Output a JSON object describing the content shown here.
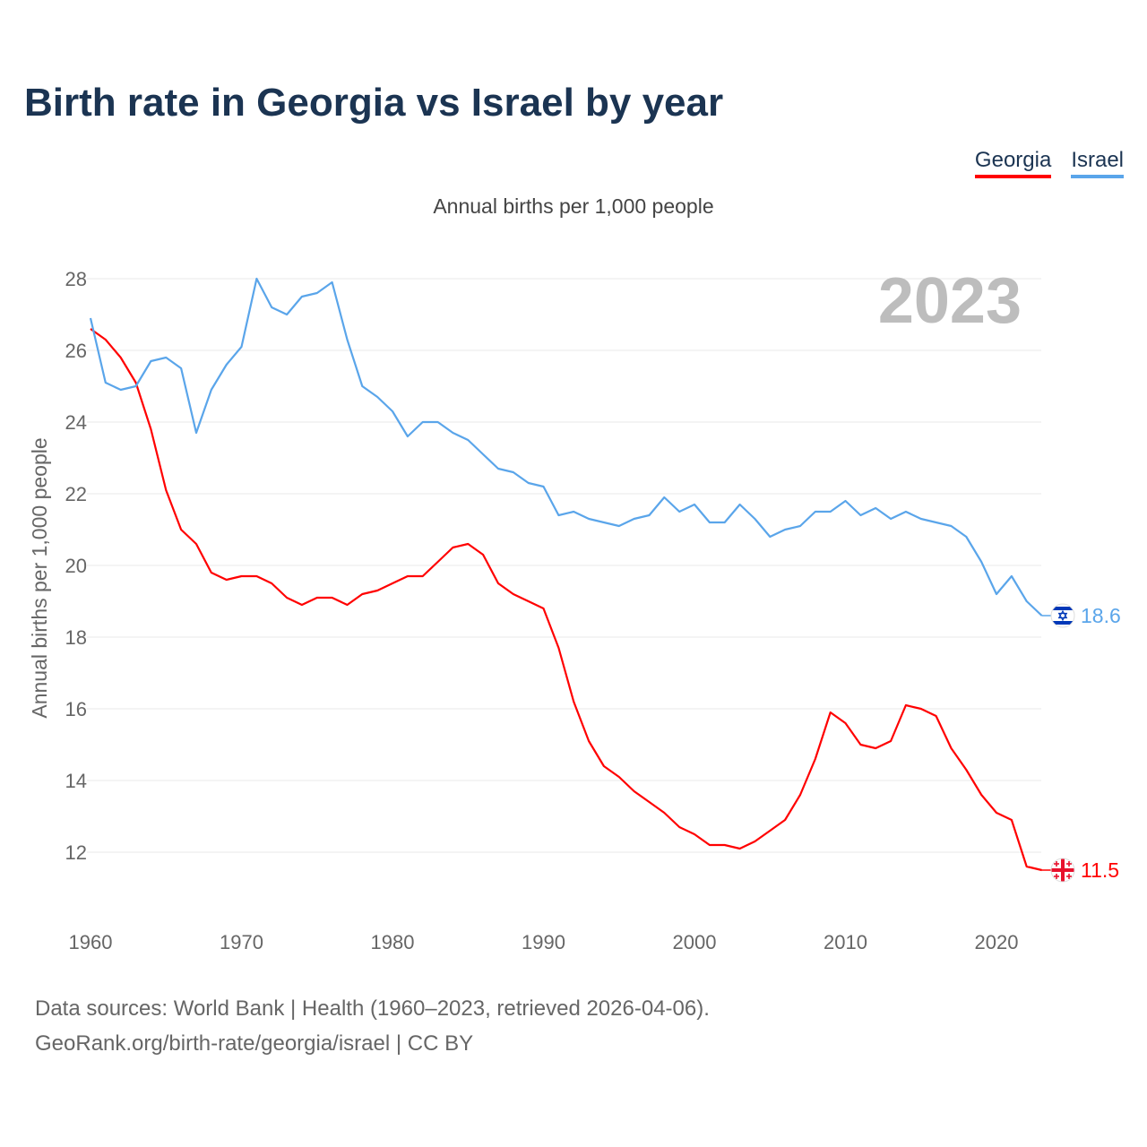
{
  "title": "Birth rate in Georgia vs Israel by year",
  "legend": [
    {
      "label": "Georgia",
      "color": "#ff0000"
    },
    {
      "label": "Israel",
      "color": "#5aa5ea"
    }
  ],
  "source_line1": "Data sources: World Bank | Health (1960–2023, retrieved 2026-04-06).",
  "source_line2": "GeoRank.org/birth-rate/georgia/israel | CC BY",
  "chart_data": {
    "type": "line",
    "title": "Birth rate in Georgia vs Israel by year",
    "subtitle": "Annual births per 1,000 people",
    "xlabel": "",
    "ylabel": "Annual births per 1,000 people",
    "year_label": "2023",
    "xlim": [
      1960,
      2023
    ],
    "ylim": [
      11,
      28.5
    ],
    "xticks": [
      1960,
      1970,
      1980,
      1990,
      2000,
      2010,
      2020
    ],
    "yticks": [
      12,
      14,
      16,
      18,
      20,
      22,
      24,
      26,
      28
    ],
    "grid": true,
    "legend_position": "top-right",
    "x_start": 1960,
    "series": [
      {
        "name": "Georgia",
        "color": "#ff0000",
        "end_label": "11.5",
        "flag": "georgia-flag",
        "values": [
          26.6,
          26.3,
          25.8,
          25.1,
          23.8,
          22.1,
          21.0,
          20.6,
          19.8,
          19.6,
          19.7,
          19.7,
          19.5,
          19.1,
          18.9,
          19.1,
          19.1,
          18.9,
          19.2,
          19.3,
          19.5,
          19.7,
          19.7,
          20.1,
          20.5,
          20.6,
          20.3,
          19.5,
          19.2,
          19.0,
          18.8,
          17.7,
          16.2,
          15.1,
          14.4,
          14.1,
          13.7,
          13.4,
          13.1,
          12.7,
          12.5,
          12.2,
          12.2,
          12.1,
          12.3,
          12.6,
          12.9,
          13.6,
          14.6,
          15.9,
          15.6,
          15.0,
          14.9,
          15.1,
          16.1,
          16.0,
          15.8,
          14.9,
          14.3,
          13.6,
          13.1,
          12.9,
          11.6,
          11.5
        ]
      },
      {
        "name": "Israel",
        "color": "#5aa5ea",
        "end_label": "18.6",
        "flag": "israel-flag",
        "values": [
          26.9,
          25.1,
          24.9,
          25.0,
          25.7,
          25.8,
          25.5,
          23.7,
          24.9,
          25.6,
          26.1,
          28.0,
          27.2,
          27.0,
          27.5,
          27.6,
          27.9,
          26.3,
          25.0,
          24.7,
          24.3,
          23.6,
          24.0,
          24.0,
          23.7,
          23.5,
          23.1,
          22.7,
          22.6,
          22.3,
          22.2,
          21.4,
          21.5,
          21.3,
          21.2,
          21.1,
          21.3,
          21.4,
          21.9,
          21.5,
          21.7,
          21.2,
          21.2,
          21.7,
          21.3,
          20.8,
          21.0,
          21.1,
          21.5,
          21.5,
          21.8,
          21.4,
          21.6,
          21.3,
          21.5,
          21.3,
          21.2,
          21.1,
          20.8,
          20.1,
          19.2,
          19.7,
          19.0,
          18.6
        ]
      }
    ]
  }
}
